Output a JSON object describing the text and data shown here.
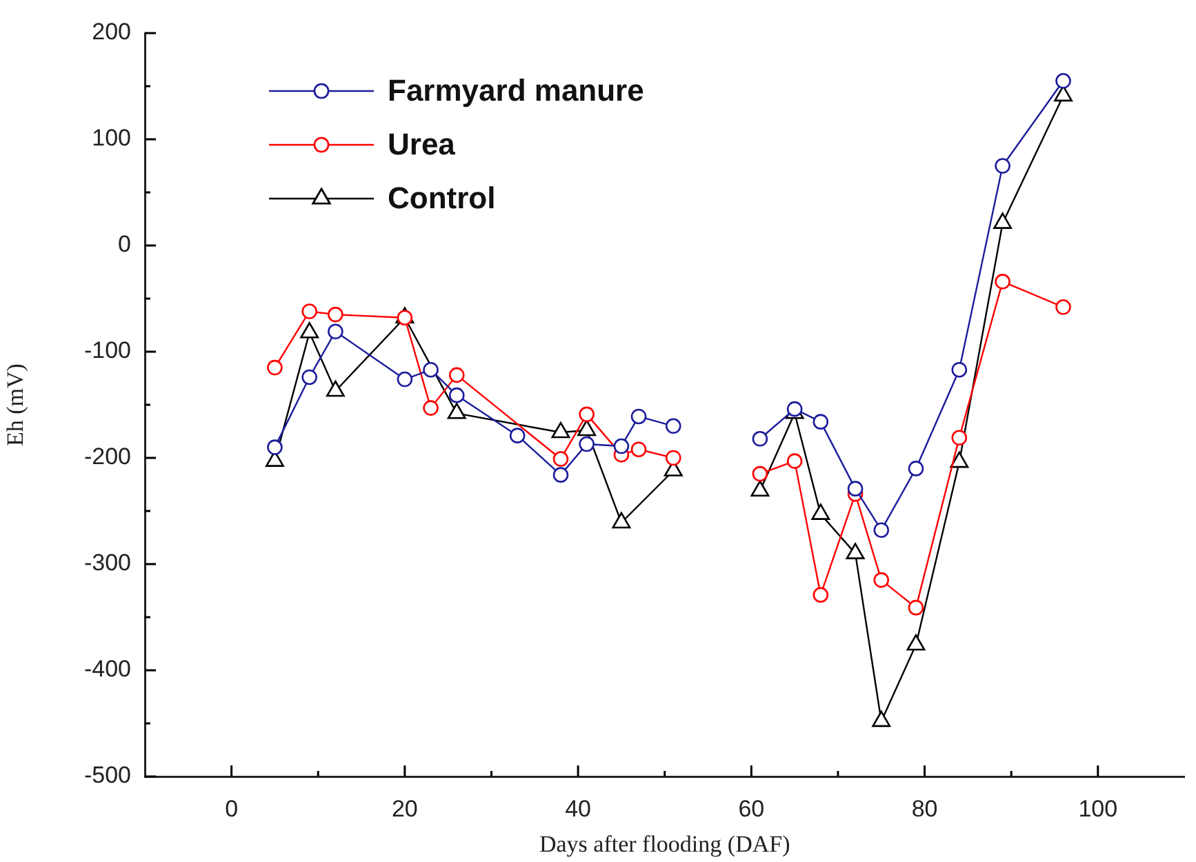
{
  "chart_data": {
    "type": "line",
    "xlabel": "Days after flooding (DAF)",
    "ylabel": "Eh (mV)",
    "xlim": [
      -10,
      110
    ],
    "xticks": [
      0,
      {
        "value": 10,
        "label": null
      },
      20,
      {
        "value": 30,
        "label": null
      },
      40,
      {
        "value": 50,
        "label": null
      },
      60,
      {
        "value": 70,
        "label": null
      },
      80,
      {
        "value": 90,
        "label": null
      },
      100
    ],
    "ylim": [
      -500,
      200
    ],
    "yticks": [
      -500,
      {
        "value": -450,
        "label": null
      },
      -400,
      {
        "value": -350,
        "label": null
      },
      -300,
      {
        "value": -250,
        "label": null
      },
      -200,
      {
        "value": -150,
        "label": null
      },
      -100,
      {
        "value": -50,
        "label": null
      },
      0,
      {
        "value": 50,
        "label": null
      },
      100,
      {
        "value": 150,
        "label": null
      },
      200
    ],
    "legend": "top left",
    "grid": false,
    "line_style": "solid",
    "series": [
      {
        "name": "Farmyard manure",
        "color": "#1c1c9c",
        "marker": "circle",
        "x": [
          5,
          9,
          12,
          20,
          23,
          26,
          33,
          38,
          41,
          45,
          47,
          51,
          56,
          61,
          65,
          68,
          72,
          75,
          79,
          84,
          89,
          96
        ],
        "values": [
          -190,
          -124,
          -81,
          -126,
          -117,
          -141,
          -179,
          -216,
          -187,
          -189,
          -161,
          -170,
          null,
          -182,
          -154,
          -166,
          -229,
          -268,
          -210,
          -117,
          75,
          155
        ]
      },
      {
        "name": "Urea",
        "color": "#ff0000",
        "marker": "circle",
        "x": [
          5,
          9,
          12,
          20,
          23,
          26,
          38,
          41,
          45,
          47,
          51,
          56,
          61,
          65,
          68,
          72,
          75,
          79,
          84,
          89,
          96
        ],
        "values": [
          -115,
          -62,
          -65,
          -68,
          -153,
          -122,
          -201,
          -159,
          -197,
          -192,
          -200,
          null,
          -215,
          -203,
          -329,
          -234,
          -315,
          -341,
          -181,
          -34,
          -58
        ]
      },
      {
        "name": "Control",
        "color": "#000000",
        "marker": "triangle",
        "x": [
          5,
          9,
          12,
          20,
          26,
          38,
          41,
          45,
          51,
          56,
          61,
          65,
          68,
          72,
          75,
          79,
          84,
          89,
          96
        ],
        "values": [
          -203,
          -82,
          -137,
          -68,
          -158,
          -176,
          -174,
          -261,
          -212,
          null,
          -231,
          -158,
          -253,
          -290,
          -448,
          -376,
          -204,
          21,
          141
        ]
      }
    ]
  }
}
